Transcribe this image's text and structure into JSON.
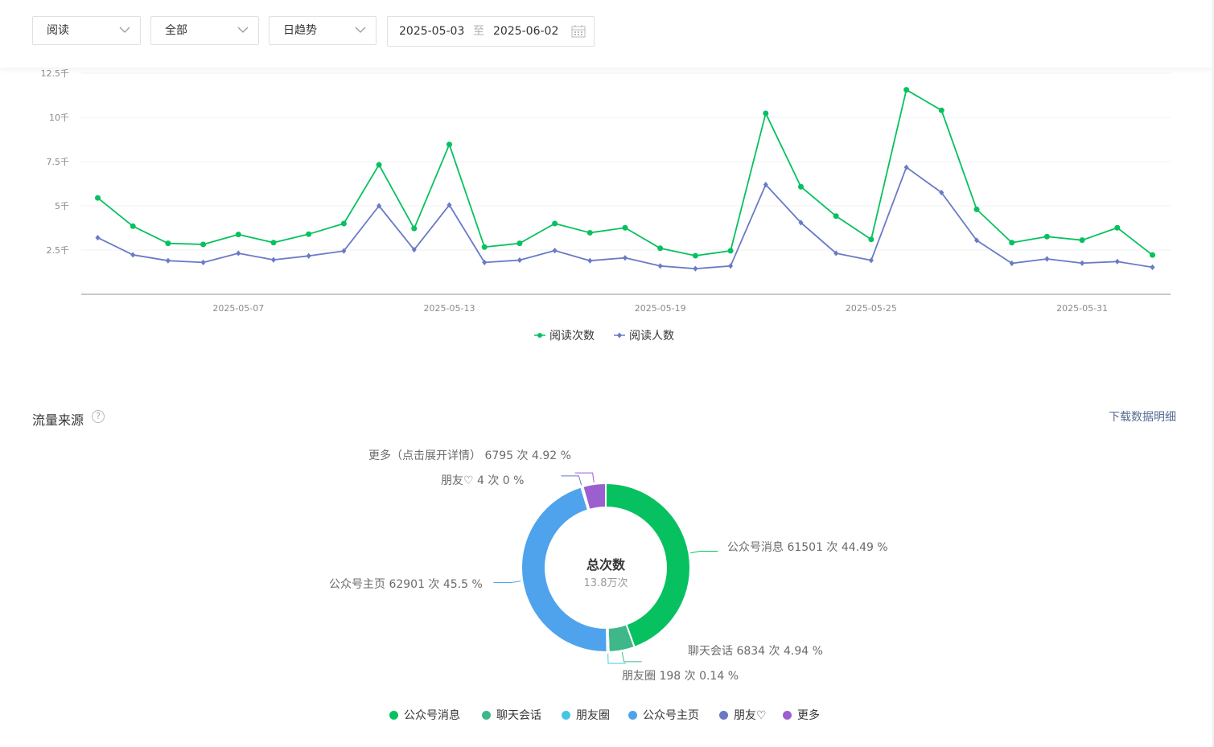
{
  "filters": {
    "metric": "阅读",
    "scope": "全部",
    "trend": "日趋势",
    "date_start": "2025-05-03",
    "date_sep": "至",
    "date_end": "2025-06-02"
  },
  "section": {
    "title": "流量来源",
    "help": "?",
    "download_label": "下载数据明细"
  },
  "colors": {
    "reads": "#07c160",
    "readers": "#6a7ac6"
  },
  "chart_data": [
    {
      "type": "line",
      "x": [
        "2025-05-03",
        "2025-05-04",
        "2025-05-05",
        "2025-05-06",
        "2025-05-07",
        "2025-05-08",
        "2025-05-09",
        "2025-05-10",
        "2025-05-11",
        "2025-05-12",
        "2025-05-13",
        "2025-05-14",
        "2025-05-15",
        "2025-05-16",
        "2025-05-17",
        "2025-05-18",
        "2025-05-19",
        "2025-05-20",
        "2025-05-21",
        "2025-05-22",
        "2025-05-23",
        "2025-05-24",
        "2025-05-25",
        "2025-05-26",
        "2025-05-27",
        "2025-05-28",
        "2025-05-29",
        "2025-05-30",
        "2025-05-31",
        "2025-06-01",
        "2025-06-02"
      ],
      "x_ticks": [
        "2025-05-07",
        "2025-05-13",
        "2025-05-19",
        "2025-05-25",
        "2025-05-31"
      ],
      "y_ticks": [
        "2.5千",
        "5千",
        "7.5千",
        "10千",
        "12.5千"
      ],
      "ylim": [
        0,
        12500
      ],
      "grid": true,
      "legend_position": "bottom",
      "series": [
        {
          "name": "阅读次数",
          "color": "#07c160",
          "marker": "circle",
          "values": [
            5450,
            3850,
            2880,
            2820,
            3380,
            2920,
            3400,
            4000,
            7320,
            3720,
            8470,
            2670,
            2880,
            4000,
            3480,
            3760,
            2600,
            2180,
            2460,
            10230,
            6080,
            4420,
            3100,
            11560,
            10400,
            4800,
            2920,
            3260,
            3060,
            3760,
            2220
          ]
        },
        {
          "name": "阅读人数",
          "color": "#6a7ac6",
          "marker": "diamond",
          "values": [
            3200,
            2230,
            1900,
            1800,
            2320,
            1950,
            2170,
            2450,
            5000,
            2520,
            5050,
            1800,
            1930,
            2470,
            1900,
            2060,
            1600,
            1450,
            1600,
            6200,
            4050,
            2320,
            1920,
            7180,
            5750,
            3050,
            1750,
            2000,
            1760,
            1850,
            1530
          ]
        }
      ]
    },
    {
      "type": "pie",
      "donut": true,
      "center_title": "总次数",
      "center_value": "13.8万次",
      "legend_position": "bottom",
      "slices": [
        {
          "name": "公众号消息",
          "value": 61501,
          "percent": 44.49,
          "color": "#07c160",
          "label": "公众号消息 61501 次 44.49 %"
        },
        {
          "name": "聊天会话",
          "value": 6834,
          "percent": 4.94,
          "color": "#3eb888",
          "label": "聊天会话 6834 次 4.94 %"
        },
        {
          "name": "朋友圈",
          "value": 198,
          "percent": 0.14,
          "color": "#45c6e4",
          "label": "朋友圈 198 次 0.14 %"
        },
        {
          "name": "公众号主页",
          "value": 62901,
          "percent": 45.5,
          "color": "#4fa3ec",
          "label": "公众号主页 62901 次 45.5 %"
        },
        {
          "name": "朋友♡",
          "value": 4,
          "percent": 0,
          "color": "#6a7ac6",
          "label": "朋友♡ 4 次 0 %"
        },
        {
          "name": "更多",
          "value": 6795,
          "percent": 4.92,
          "color": "#9b5fd0",
          "label": "更多（点击展开详情） 6795 次 4.92 %"
        }
      ]
    }
  ]
}
